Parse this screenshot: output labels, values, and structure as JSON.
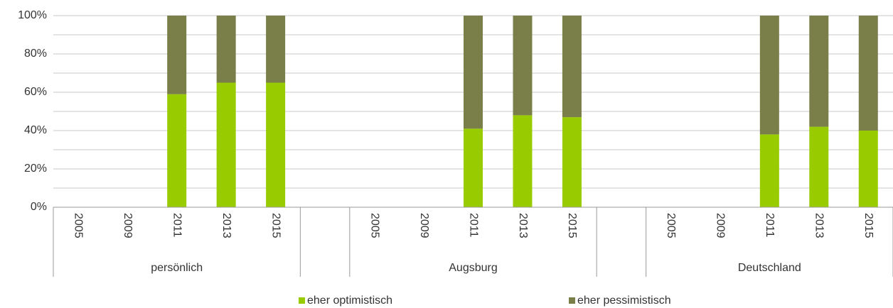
{
  "chart_data": {
    "type": "stacked_bar",
    "categories": [
      "2005",
      "2009",
      "2011",
      "2013",
      "2015",
      null,
      "2005",
      "2009",
      "2011",
      "2013",
      "2015",
      null,
      "2005",
      "2009",
      "2011",
      "2013",
      "2015"
    ],
    "groups": [
      "persönlich",
      "Augsburg",
      "Deutschland"
    ],
    "series": [
      {
        "name": "eher optimistisch",
        "color": "#99cc00",
        "values": [
          null,
          null,
          59,
          65,
          65,
          null,
          null,
          null,
          41,
          48,
          47,
          null,
          null,
          null,
          38,
          42,
          40
        ]
      },
      {
        "name": "eher pessimistisch",
        "color": "#7a7f4a",
        "values": [
          null,
          null,
          41,
          35,
          35,
          null,
          null,
          null,
          59,
          52,
          53,
          null,
          null,
          null,
          62,
          58,
          60
        ]
      }
    ],
    "ylim": [
      0,
      100
    ],
    "yticks": [
      {
        "value": 0,
        "label": "0%"
      },
      {
        "value": 20,
        "label": "20%"
      },
      {
        "value": 40,
        "label": "40%"
      },
      {
        "value": 60,
        "label": "60%"
      },
      {
        "value": 80,
        "label": "80%"
      },
      {
        "value": 100,
        "label": "100%"
      }
    ],
    "minor_yticks": [
      10,
      30,
      50,
      70,
      90
    ],
    "grid": true,
    "legend": "bottom"
  }
}
